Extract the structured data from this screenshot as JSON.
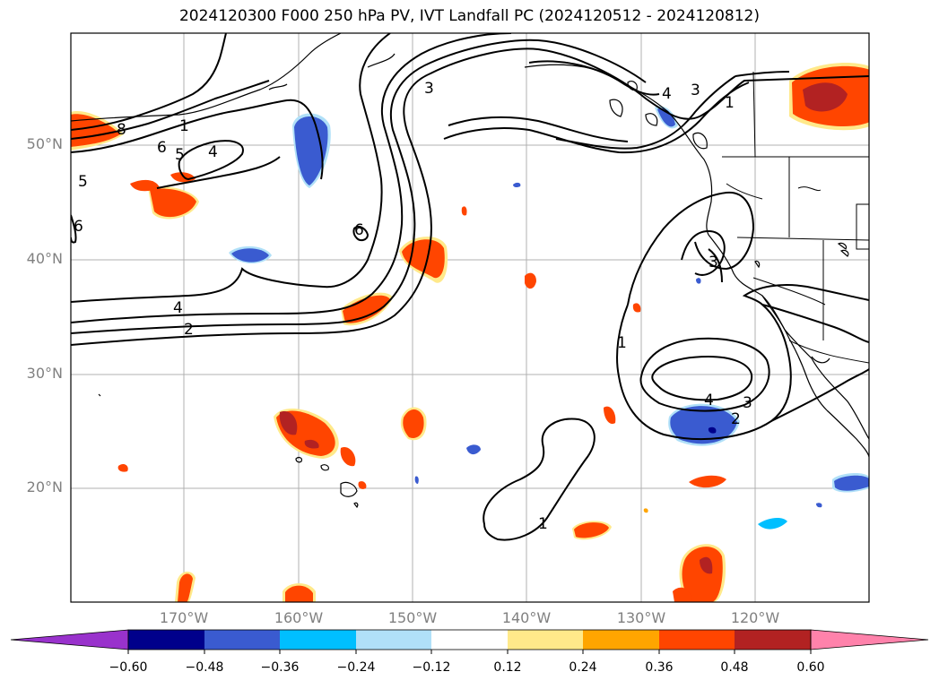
{
  "title": "2024120300 F000 250 hPa PV, IVT Landfall PC (2024120512 - 2024120812)",
  "lat_labels": [
    "50°N",
    "40°N",
    "30°N",
    "20°N"
  ],
  "lon_labels": [
    "170°W",
    "160°W",
    "150°W",
    "140°W",
    "130°W",
    "120°W"
  ],
  "colorbar": {
    "ticks": [
      "−0.60",
      "−0.48",
      "−0.36",
      "−0.24",
      "−0.12",
      "0.12",
      "0.24",
      "0.36",
      "0.48",
      "0.60"
    ],
    "colors": [
      "#9932cc",
      "#00008b",
      "#3a5bd0",
      "#00bfff",
      "#b0e0f8",
      "#ffffff",
      "#ffe98a",
      "#ffa500",
      "#ff4500",
      "#b22222",
      "#ff82ab"
    ]
  },
  "contour_labels": {
    "c1": "1",
    "c2": "2",
    "c3": "3",
    "c4": "4",
    "c5": "5",
    "c6": "6",
    "c8": "8"
  },
  "colors": {
    "pos_low": "#ffe98a",
    "pos_mid": "#ffa500",
    "pos_high": "#ff4500",
    "pos_max": "#b22222",
    "neg_low": "#b0e0f8",
    "neg_mid": "#00bfff",
    "neg_high": "#3a5bd0",
    "neg_max": "#00008b",
    "grid": "#b0b0b0",
    "contour": "#000000"
  }
}
